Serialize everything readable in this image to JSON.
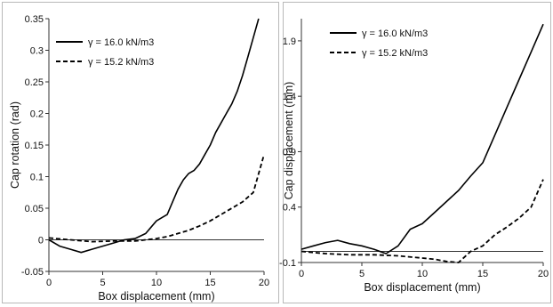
{
  "chart_data": [
    {
      "type": "line",
      "xlabel": "Box displacement (mm)",
      "ylabel": "Cap rotation (rad)",
      "xlim": [
        0,
        20
      ],
      "ylim": [
        -0.05,
        0.35
      ],
      "xticks": [
        "0",
        "5",
        "10",
        "15",
        "20"
      ],
      "yticks": [
        "-0.05",
        "0",
        "0.05",
        "0.1",
        "0.15",
        "0.2",
        "0.25",
        "0.3",
        "0.35"
      ],
      "grid": false,
      "legend_position": "top-left",
      "series": [
        {
          "name": "γ = 16.0 kN/m3",
          "style": "solid",
          "x": [
            0,
            1,
            2,
            3,
            4,
            5,
            6,
            7,
            8,
            9,
            9.5,
            10,
            10.5,
            11,
            11.5,
            12,
            12.5,
            13,
            13.5,
            14,
            14.5,
            15,
            15.5,
            16,
            16.5,
            17,
            17.5,
            18,
            18.5,
            19,
            19.5
          ],
          "y": [
            0.0,
            -0.01,
            -0.015,
            -0.02,
            -0.015,
            -0.01,
            -0.005,
            0.0,
            0.002,
            0.01,
            0.02,
            0.03,
            0.035,
            0.04,
            0.06,
            0.08,
            0.095,
            0.105,
            0.11,
            0.12,
            0.135,
            0.15,
            0.17,
            0.185,
            0.2,
            0.215,
            0.235,
            0.26,
            0.29,
            0.32,
            0.35
          ]
        },
        {
          "name": "γ = 15.2 kN/m3",
          "style": "dashed",
          "x": [
            0,
            2,
            4,
            6,
            8,
            9,
            10,
            11,
            12,
            13,
            14,
            15,
            16,
            17,
            18,
            19,
            20
          ],
          "y": [
            0.003,
            0.0,
            -0.003,
            -0.002,
            -0.002,
            0.0,
            0.002,
            0.005,
            0.01,
            0.015,
            0.022,
            0.03,
            0.04,
            0.05,
            0.06,
            0.075,
            0.135
          ]
        }
      ]
    },
    {
      "type": "line",
      "xlabel": "Box displacement (mm)",
      "ylabel": "Cap displacement (mm)",
      "xlim": [
        0,
        20
      ],
      "ylim": [
        -0.1,
        2.1
      ],
      "xticks": [
        "0",
        "5",
        "10",
        "15",
        "20"
      ],
      "yticks": [
        "-0.1",
        "0.4",
        "0.9",
        "1.4",
        "1.9"
      ],
      "grid": false,
      "legend_position": "top-left",
      "series": [
        {
          "name": "γ = 16.0 kN/m3",
          "style": "solid",
          "x": [
            0,
            1,
            2,
            3,
            4,
            5,
            6,
            7,
            8,
            9,
            10,
            11,
            12,
            13,
            14,
            15,
            16,
            17,
            18,
            19,
            20
          ],
          "y": [
            0.02,
            0.05,
            0.08,
            0.1,
            0.07,
            0.05,
            0.02,
            -0.02,
            0.05,
            0.2,
            0.25,
            0.35,
            0.45,
            0.55,
            0.68,
            0.8,
            1.05,
            1.3,
            1.55,
            1.8,
            2.05
          ]
        },
        {
          "name": "γ = 15.2 kN/m3",
          "style": "dashed",
          "x": [
            0,
            2,
            4,
            6,
            8,
            10,
            11,
            12,
            13,
            14,
            15,
            16,
            17,
            18,
            19,
            20
          ],
          "y": [
            0.0,
            -0.02,
            -0.03,
            -0.03,
            -0.04,
            -0.06,
            -0.07,
            -0.09,
            -0.1,
            0.0,
            0.05,
            0.15,
            0.22,
            0.3,
            0.4,
            0.65
          ]
        }
      ]
    }
  ]
}
